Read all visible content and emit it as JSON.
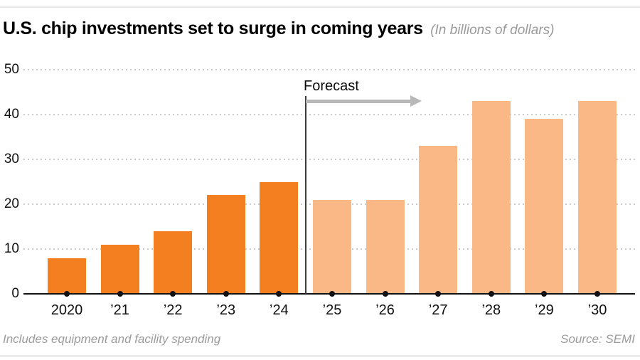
{
  "title": {
    "main": "U.S. chip investments set to surge in coming years",
    "unit_note": "(In billions of dollars)"
  },
  "forecast": {
    "label": "Forecast"
  },
  "footer": {
    "note": "Includes equipment and facility spending",
    "source": "Source: SEMI"
  },
  "colors": {
    "actual_bar": "#f47f20",
    "forecast_bar": "#fab887",
    "arrow_gray": "#b8b8b8",
    "grid_gray": "#cbcbcb",
    "axis_black": "#111111",
    "muted_text": "#9b9b9b"
  },
  "chart_data": {
    "type": "bar",
    "title": "U.S. chip investments set to surge in coming years",
    "subtitle": "(In billions of dollars)",
    "categories": [
      "2020",
      "’21",
      "’22",
      "’23",
      "’24",
      "’25",
      "’26",
      "’27",
      "’28",
      "’29",
      "’30"
    ],
    "values": [
      8,
      11,
      14,
      22,
      25,
      21,
      21,
      33,
      43,
      39,
      43
    ],
    "actual_categories": [
      "2020",
      "’21",
      "’22",
      "’23",
      "’24"
    ],
    "forecast_categories": [
      "’25",
      "’26",
      "’27",
      "’28",
      "’29",
      "’30"
    ],
    "forecast_start_index": 5,
    "annotation": "Forecast",
    "xlabel": "",
    "ylabel": "",
    "yticks": [
      0,
      10,
      20,
      30,
      40,
      50
    ],
    "ylim": [
      0,
      50
    ],
    "grid": "dotted horizontal",
    "legend": "none"
  }
}
